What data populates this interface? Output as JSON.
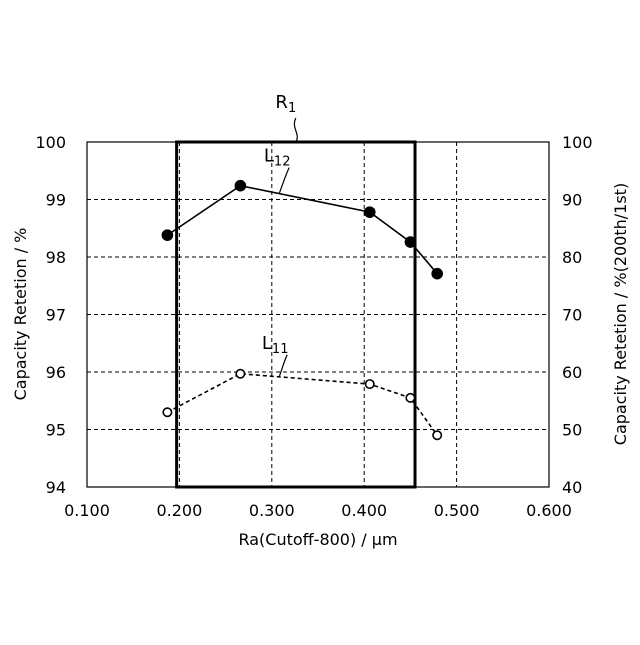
{
  "chart_data": {
    "type": "line",
    "xlabel": "Ra(Cutoff-800) / μm",
    "ylabel": "Capacity Retetion / %",
    "y2label": "Capacity Retetion / %(200th/1st)",
    "xlim": [
      0.1,
      0.6
    ],
    "ylim": [
      94,
      100
    ],
    "y2lim": [
      40,
      100
    ],
    "x_ticks": [
      "0.100",
      "0.200",
      "0.300",
      "0.400",
      "0.500",
      "0.600"
    ],
    "y_ticks": [
      "94",
      "95",
      "96",
      "97",
      "98",
      "99",
      "100"
    ],
    "y2_ticks": [
      "40",
      "50",
      "60",
      "70",
      "80",
      "90",
      "100"
    ],
    "grid": true,
    "series": [
      {
        "label": "L12",
        "label_main": "L",
        "label_sub": "12",
        "axis": "left",
        "marker": "filled-circle",
        "line_style": "solid",
        "x": [
          0.187,
          0.266,
          0.406,
          0.45,
          0.479
        ],
        "y": [
          98.38,
          99.24,
          98.78,
          98.26,
          97.71
        ]
      },
      {
        "label": "L11",
        "label_main": "L",
        "label_sub": "11",
        "axis": "left",
        "marker": "open-circle",
        "line_style": "dashed",
        "x": [
          0.187,
          0.266,
          0.406,
          0.45,
          0.479
        ],
        "y": [
          95.3,
          95.97,
          95.79,
          95.55,
          94.9
        ]
      }
    ],
    "region": {
      "label": "R1",
      "label_main": "R",
      "label_sub": "1",
      "x": [
        0.197,
        0.455
      ],
      "y": [
        94,
        100
      ]
    }
  }
}
